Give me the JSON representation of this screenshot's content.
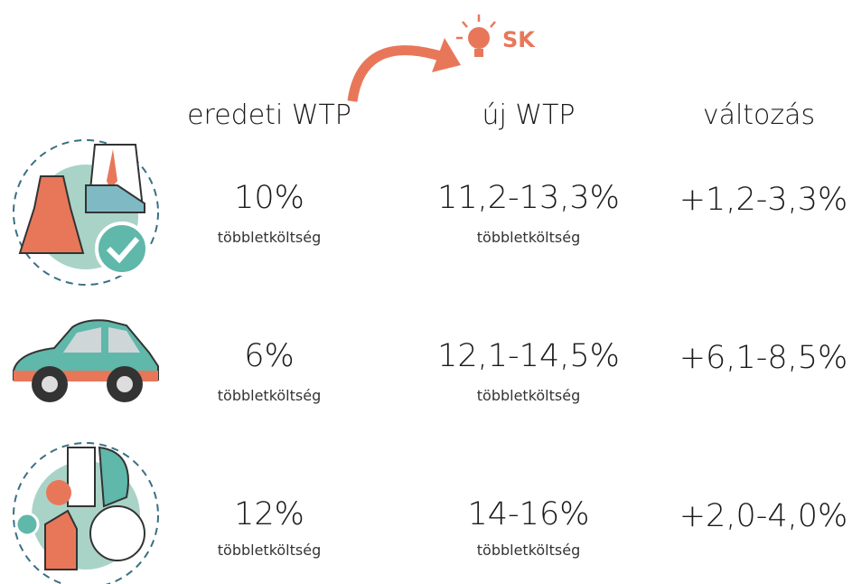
{
  "logo": {
    "text": "SK"
  },
  "table": {
    "headers": [
      "eredeti WTP",
      "új WTP",
      "változás"
    ],
    "rows": [
      {
        "original": "10%",
        "original_note": "többletköltség",
        "new": "11,2-13,3%",
        "new_note": "többletköltség",
        "change": "+1,2-3,3%"
      },
      {
        "original": "6%",
        "original_note": "többletköltség",
        "new": "12,1-14,5%",
        "new_note": "többletköltség",
        "change": "+6,1-8,5%"
      },
      {
        "original": "12%",
        "original_note": "többletköltség",
        "new": "14-16%",
        "new_note": "többletköltség",
        "change": "+2,0-4,0%"
      }
    ]
  }
}
